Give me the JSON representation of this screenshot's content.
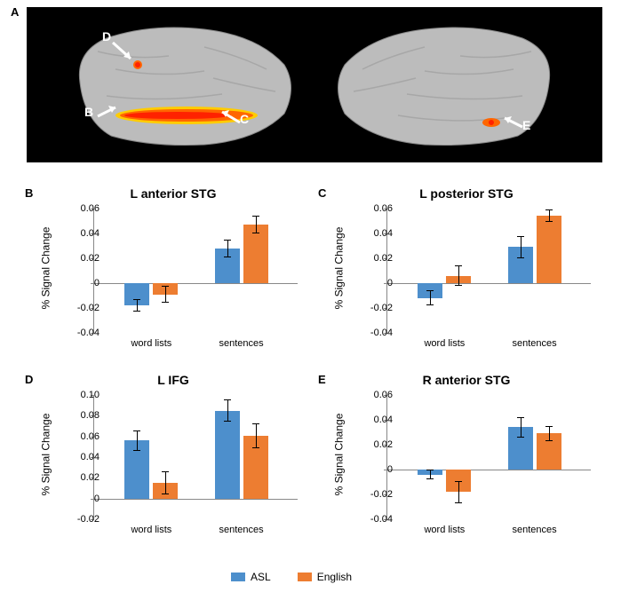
{
  "panelA": {
    "label": "A",
    "regions": {
      "D": "D",
      "B": "B",
      "C": "C",
      "E": "E"
    }
  },
  "charts": {
    "B": {
      "label": "B",
      "title": "L anterior STG",
      "ylabel": "% Signal Change",
      "ylim": [
        -0.04,
        0.06
      ],
      "yticks": [
        -0.04,
        -0.02,
        0,
        0.02,
        0.04,
        0.06
      ],
      "categories": [
        "word lists",
        "sentences"
      ],
      "series": {
        "ASL": {
          "values": [
            -0.018,
            0.028
          ],
          "errors": [
            0.005,
            0.007
          ],
          "color": "#4d8fcc"
        },
        "English": {
          "values": [
            -0.009,
            0.047
          ],
          "errors": [
            0.007,
            0.007
          ],
          "color": "#ed7d31"
        }
      }
    },
    "C": {
      "label": "C",
      "title": "L posterior STG",
      "ylabel": "% Signal Change",
      "ylim": [
        -0.04,
        0.06
      ],
      "yticks": [
        -0.04,
        -0.02,
        0,
        0.02,
        0.04,
        0.06
      ],
      "categories": [
        "word lists",
        "sentences"
      ],
      "series": {
        "ASL": {
          "values": [
            -0.012,
            0.029
          ],
          "errors": [
            0.006,
            0.009
          ],
          "color": "#4d8fcc"
        },
        "English": {
          "values": [
            0.006,
            0.054
          ],
          "errors": [
            0.008,
            0.005
          ],
          "color": "#ed7d31"
        }
      }
    },
    "D": {
      "label": "D",
      "title": "L IFG",
      "ylabel": "% Signal Change",
      "ylim": [
        -0.02,
        0.1
      ],
      "yticks": [
        -0.02,
        0,
        0.02,
        0.04,
        0.06,
        0.08,
        0.1
      ],
      "categories": [
        "word lists",
        "sentences"
      ],
      "series": {
        "ASL": {
          "values": [
            0.056,
            0.085
          ],
          "errors": [
            0.01,
            0.011
          ],
          "color": "#4d8fcc"
        },
        "English": {
          "values": [
            0.015,
            0.061
          ],
          "errors": [
            0.011,
            0.012
          ],
          "color": "#ed7d31"
        }
      }
    },
    "E": {
      "label": "E",
      "title": "R anterior STG",
      "ylabel": "% Signal Change",
      "ylim": [
        -0.04,
        0.06
      ],
      "yticks": [
        -0.04,
        -0.02,
        0,
        0.02,
        0.04,
        0.06
      ],
      "categories": [
        "word lists",
        "sentences"
      ],
      "series": {
        "ASL": {
          "values": [
            -0.004,
            0.034
          ],
          "errors": [
            0.004,
            0.008
          ],
          "color": "#4d8fcc"
        },
        "English": {
          "values": [
            -0.018,
            0.029
          ],
          "errors": [
            0.009,
            0.006
          ],
          "color": "#ed7d31"
        }
      }
    }
  },
  "legend": {
    "ASL": {
      "label": "ASL",
      "color": "#4d8fcc"
    },
    "English": {
      "label": "English",
      "color": "#ed7d31"
    }
  },
  "colors": {
    "background": "#ffffff",
    "brain_bg": "#000000",
    "brain_surface": "#b8b8b8",
    "activation_hot": "#ff4500",
    "activation_yellow": "#ffcc00",
    "asl": "#4d8fcc",
    "english": "#ed7d31",
    "axis": "#888888"
  }
}
